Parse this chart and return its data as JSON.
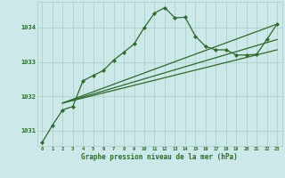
{
  "bg_color": "#cce8e8",
  "plot_bg": "#cce8e8",
  "grid_color": "#aacccc",
  "line_color": "#2d6a2d",
  "text_color": "#2d6a2d",
  "xlabel": "Graphe pression niveau de la mer (hPa)",
  "xlim": [
    -0.5,
    23.5
  ],
  "ylim": [
    1030.55,
    1034.75
  ],
  "yticks": [
    1031,
    1032,
    1033,
    1034
  ],
  "xtick_labels": [
    "0",
    "1",
    "2",
    "3",
    "4",
    "5",
    "6",
    "7",
    "8",
    "9",
    "10",
    "11",
    "12",
    "13",
    "14",
    "15",
    "16",
    "17",
    "18",
    "19",
    "20",
    "21",
    "22",
    "23"
  ],
  "main_x": [
    0,
    1,
    2,
    3,
    4,
    5,
    6,
    7,
    8,
    9,
    10,
    11,
    12,
    13,
    14,
    15,
    16,
    17,
    18,
    19,
    20,
    21,
    22,
    23
  ],
  "main_y": [
    1030.65,
    1031.15,
    1031.6,
    1031.7,
    1032.45,
    1032.6,
    1032.75,
    1033.05,
    1033.28,
    1033.52,
    1034.0,
    1034.42,
    1034.58,
    1034.28,
    1034.3,
    1033.75,
    1033.45,
    1033.35,
    1033.35,
    1033.2,
    1033.2,
    1033.22,
    1033.65,
    1034.1
  ],
  "trend1_x": [
    2,
    23
  ],
  "trend1_y": [
    1031.8,
    1034.1
  ],
  "trend2_x": [
    2,
    23
  ],
  "trend2_y": [
    1031.8,
    1033.65
  ],
  "trend3_x": [
    2,
    23
  ],
  "trend3_y": [
    1031.8,
    1033.35
  ]
}
